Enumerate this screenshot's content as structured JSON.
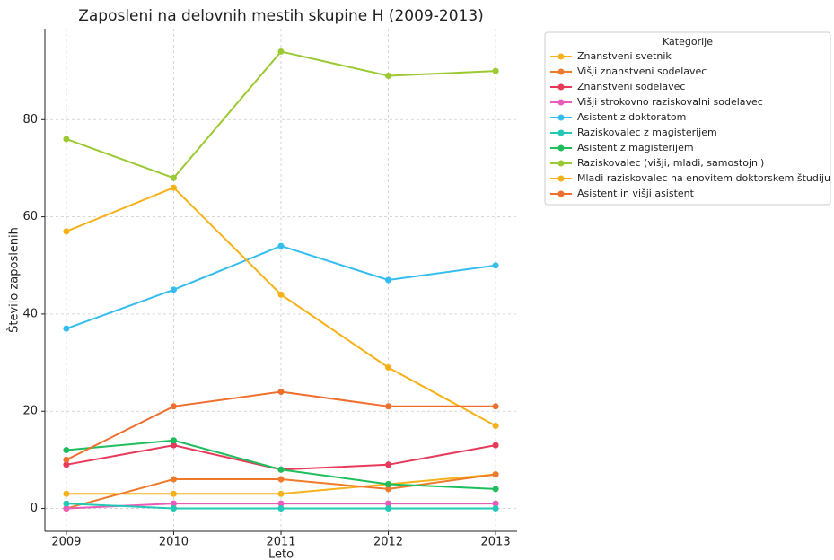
{
  "chart_data": {
    "type": "line",
    "title": "Zaposleni na delovnih mestih skupine H (2009-2013)",
    "x_label": "Leto",
    "y_label": "Število zaposlenih",
    "legend_title": "Kategorije",
    "legend_position": "upper left outside",
    "x": [
      2009,
      2010,
      2011,
      2012,
      2013
    ],
    "xlim": [
      2008.8,
      2013.2
    ],
    "xticks": [
      2009,
      2010,
      2011,
      2012,
      2013
    ],
    "ylim": [
      -4.7,
      98.7
    ],
    "yticks": [
      0,
      20,
      40,
      60,
      80
    ],
    "grid": true,
    "series": [
      {
        "name": "Znanstveni svetnik",
        "color": "#f5b21c",
        "values": [
          3,
          3,
          3,
          5,
          7
        ]
      },
      {
        "name": "Višji znanstveni sodelavec",
        "color": "#ee7b2c",
        "values": [
          0,
          6,
          6,
          4,
          7
        ]
      },
      {
        "name": "Znanstveni sodelavec",
        "color": "#e73a5a",
        "values": [
          9,
          13,
          8,
          9,
          13
        ]
      },
      {
        "name": "Višji strokovno raziskovalni sodelavec",
        "color": "#e95cb9",
        "values": [
          0,
          1,
          1,
          1,
          1
        ]
      },
      {
        "name": "Asistent z doktoratom",
        "color": "#34bdee",
        "values": [
          37,
          45,
          54,
          47,
          50
        ]
      },
      {
        "name": "Raziskovalec z magisterijem",
        "color": "#22c9b4",
        "values": [
          1,
          0,
          0,
          0,
          0
        ]
      },
      {
        "name": "Asistent z magisterijem",
        "color": "#1ebe5d",
        "values": [
          12,
          14,
          8,
          5,
          4
        ]
      },
      {
        "name": "Raziskovalec (višji, mladi, samostojni)",
        "color": "#9bc932",
        "values": [
          76,
          68,
          94,
          89,
          90
        ]
      },
      {
        "name": "Mladi raziskovalec na enovitem doktorskem študiju",
        "color": "#f7b118",
        "values": [
          57,
          66,
          44,
          29,
          17
        ]
      },
      {
        "name": "Asistent in višji asistent",
        "color": "#ef6f2f",
        "values": [
          10,
          21,
          24,
          21,
          21
        ]
      }
    ]
  }
}
